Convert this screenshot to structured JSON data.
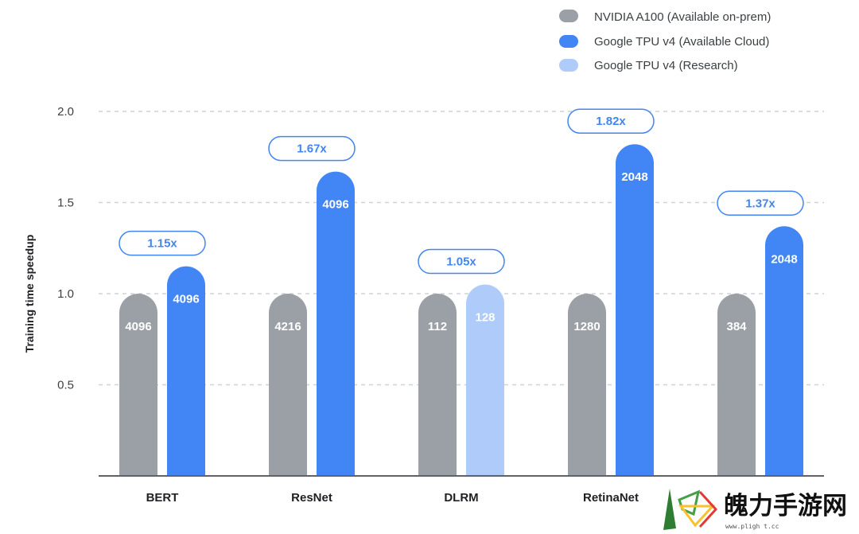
{
  "colors": {
    "nvidia": "#9aa0a6",
    "tpu_cloud": "#4285f4",
    "tpu_research": "#aecbfa",
    "pill_text": "#4285f4",
    "grid": "#cfd2d6"
  },
  "legend": [
    {
      "label": "NVIDIA A100 (Available on-prem)",
      "color_key": "nvidia"
    },
    {
      "label": "Google TPU v4 (Available Cloud)",
      "color_key": "tpu_cloud"
    },
    {
      "label": "Google TPU v4 (Research)",
      "color_key": "tpu_research"
    }
  ],
  "watermark": {
    "text": "魄力手游网",
    "sub": "www.pligh t.cc"
  },
  "chart_data": {
    "type": "bar",
    "ylabel": "Training time speedup",
    "ylim": [
      0,
      2.0
    ],
    "yticks": [
      "0.5",
      "1.0",
      "1.5",
      "2.0"
    ],
    "ytick_values": [
      0.5,
      1.0,
      1.5,
      2.0
    ],
    "grid": true,
    "legend_position": "top-right",
    "categories": [
      "BERT",
      "ResNet",
      "DLRM",
      "RetinaNet",
      ""
    ],
    "groups": [
      {
        "category": "BERT",
        "nvidia": {
          "value": 1.0,
          "label": "4096"
        },
        "tpu": {
          "value": 1.15,
          "label": "4096",
          "series": "tpu_cloud"
        },
        "speedup": "1.15x"
      },
      {
        "category": "ResNet",
        "nvidia": {
          "value": 1.0,
          "label": "4216"
        },
        "tpu": {
          "value": 1.67,
          "label": "4096",
          "series": "tpu_cloud"
        },
        "speedup": "1.67x"
      },
      {
        "category": "DLRM",
        "nvidia": {
          "value": 1.0,
          "label": "112"
        },
        "tpu": {
          "value": 1.05,
          "label": "128",
          "series": "tpu_research"
        },
        "speedup": "1.05x"
      },
      {
        "category": "RetinaNet",
        "nvidia": {
          "value": 1.0,
          "label": "1280"
        },
        "tpu": {
          "value": 1.82,
          "label": "2048",
          "series": "tpu_cloud"
        },
        "speedup": "1.82x"
      },
      {
        "category": "",
        "nvidia": {
          "value": 1.0,
          "label": "384"
        },
        "tpu": {
          "value": 1.37,
          "label": "2048",
          "series": "tpu_cloud"
        },
        "speedup": "1.37x"
      }
    ]
  }
}
